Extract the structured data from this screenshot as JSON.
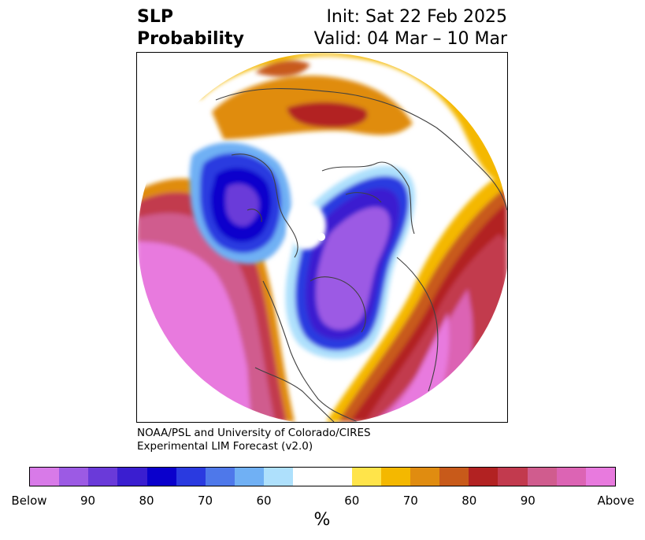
{
  "title": {
    "left_lines": [
      "SLP",
      "Probability"
    ],
    "right_lines": [
      "Init: Sat 22 Feb 2025",
      "Valid: 04 Mar – 10 Mar"
    ]
  },
  "credit": {
    "lines": [
      "NOAA/PSL and University of Colorado/CIRES",
      "Experimental LIM Forecast (v2.0)"
    ]
  },
  "colorbar": {
    "unit": "%",
    "segments": [
      {
        "color": "#d87ae8"
      },
      {
        "color": "#9c5ae4"
      },
      {
        "color": "#6a3ad9"
      },
      {
        "color": "#3a1ed0"
      },
      {
        "color": "#0a00cc"
      },
      {
        "color": "#2a3ae0"
      },
      {
        "color": "#4e78ea"
      },
      {
        "color": "#70b0f4"
      },
      {
        "color": "#aee0fc"
      },
      {
        "color": "#ffffff",
        "wide": true
      },
      {
        "color": "#ffe44a"
      },
      {
        "color": "#f4b800"
      },
      {
        "color": "#e08c10"
      },
      {
        "color": "#c85a1a"
      },
      {
        "color": "#b22222"
      },
      {
        "color": "#c23a4e"
      },
      {
        "color": "#d05c8e"
      },
      {
        "color": "#dc64b4"
      },
      {
        "color": "#e87ade"
      }
    ],
    "labels": [
      "Below",
      "90",
      "80",
      "70",
      "60",
      "60",
      "70",
      "80",
      "90",
      "Above"
    ]
  },
  "map": {
    "colors": {
      "below_strong": "#0a00cc",
      "below_mid": "#3a1ed0",
      "below_purple": "#9c5ae4",
      "below_light": "#70b0f4",
      "above_pink": "#e87ade",
      "above_red": "#c23a4e",
      "above_orange": "#e08c10",
      "above_yellow": "#f4b800",
      "coast": "#404040"
    }
  }
}
